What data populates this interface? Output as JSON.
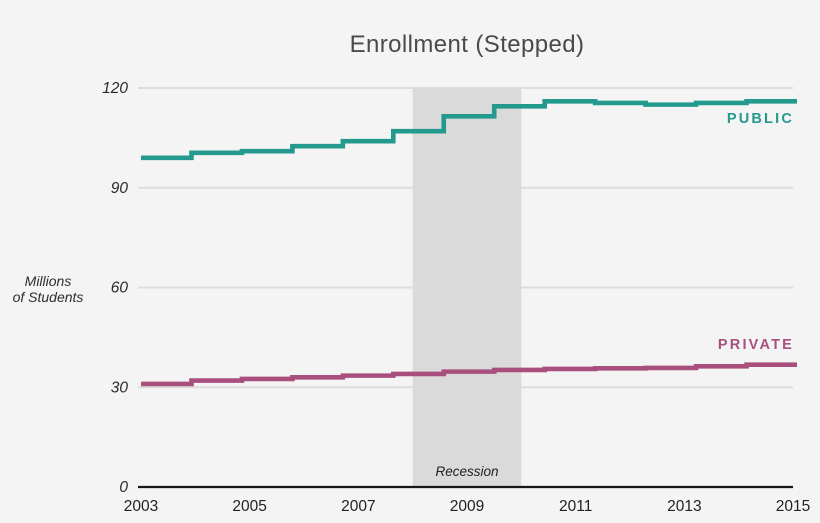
{
  "title": "Enrollment (Stepped)",
  "y_axis": {
    "unit_label_lines": [
      "Millions",
      "of Students"
    ],
    "ticks": [
      0,
      30,
      60,
      90,
      120
    ]
  },
  "x_axis": {
    "ticks": [
      2003,
      2005,
      2007,
      2009,
      2011,
      2013,
      2015
    ]
  },
  "annotations": {
    "recession": {
      "label": "Recession",
      "from_year": 2008,
      "to_year": 2010
    }
  },
  "chart_data": {
    "type": "line",
    "step": true,
    "title": "Enrollment (Stepped)",
    "ylabel": "Millions of Students",
    "xlabel": "",
    "ylim": [
      0,
      120
    ],
    "xlim": [
      2003,
      2015
    ],
    "grid": "horizontal",
    "legend_position": "inline-right",
    "x": [
      2003,
      2004,
      2005,
      2006,
      2007,
      2008,
      2009,
      2010,
      2011,
      2012,
      2013,
      2014,
      2015
    ],
    "series": [
      {
        "name": "PUBLIC",
        "color": "#249a8e",
        "values": [
          99,
          100.5,
          101,
          102.5,
          104,
          107,
          111.5,
          114.5,
          116,
          115.5,
          115,
          115.5,
          116
        ]
      },
      {
        "name": "PRIVATE",
        "color": "#a84f7e",
        "values": [
          31,
          32,
          32.5,
          33,
          33.5,
          34,
          34.7,
          35.2,
          35.5,
          35.7,
          35.8,
          36.3,
          36.8
        ]
      }
    ],
    "bands": [
      {
        "label": "Recession",
        "from": 2008,
        "to": 2010,
        "color": "#dadada"
      }
    ]
  },
  "colors": {
    "background": "#f4f4f4",
    "band": "#dadada",
    "grid": "#dcdddd",
    "axis": "#161616",
    "tick_label": "#222222",
    "public": "#249a8e",
    "private": "#a84f7e"
  }
}
